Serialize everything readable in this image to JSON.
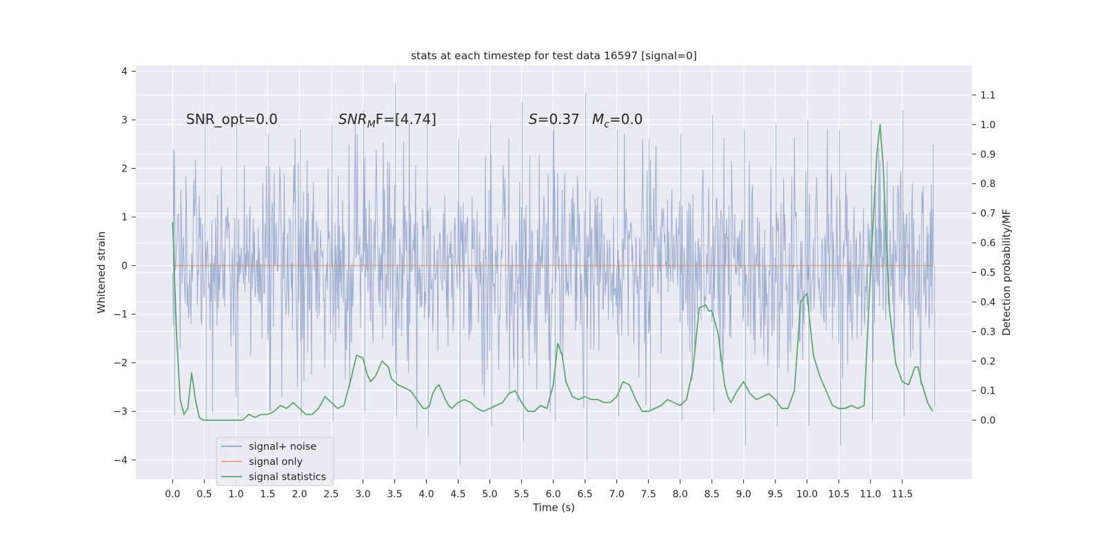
{
  "chart_data": {
    "type": "line",
    "title": "stats at each timestep for test data 16597 [signal=0]",
    "xlabel": "Time (s)",
    "ylabel_left": "Whitened strain",
    "ylabel_right": "Detection probability/MF",
    "xlim": [
      -0.58,
      12.6
    ],
    "ylim_left": [
      -4.4,
      4.12
    ],
    "ylim_right": [
      -0.2,
      1.2
    ],
    "x_ticks": [
      0.0,
      0.5,
      1.0,
      1.5,
      2.0,
      2.5,
      3.0,
      3.5,
      4.0,
      4.5,
      5.0,
      5.5,
      6.0,
      6.5,
      7.0,
      7.5,
      8.0,
      8.5,
      9.0,
      9.5,
      10.0,
      10.5,
      11.0,
      11.5
    ],
    "x_tick_labels": [
      "0.0",
      "0.5",
      "1.0",
      "1.5",
      "2.0",
      "2.5",
      "3.0",
      "3.5",
      "4.0",
      "4.5",
      "5.0",
      "5.5",
      "6.0",
      "6.5",
      "7.0",
      "7.5",
      "8.0",
      "8.5",
      "9.0",
      "9.5",
      "10.0",
      "10.5",
      "11.0",
      "11.5"
    ],
    "y_ticks_left": [
      4,
      3,
      2,
      1,
      0,
      -1,
      -2,
      -3,
      -4
    ],
    "y_tick_labels_left": [
      "4",
      "3",
      "2",
      "1",
      "0",
      "−1",
      "−2",
      "−3",
      "−4"
    ],
    "y_ticks_right": [
      1.1,
      1.0,
      0.9,
      0.8,
      0.7,
      0.6,
      0.5,
      0.4,
      0.3,
      0.2,
      0.1,
      0.0
    ],
    "y_tick_labels_right": [
      "1.1",
      "1.0",
      "0.9",
      "0.8",
      "0.7",
      "0.6",
      "0.5",
      "0.4",
      "0.3",
      "0.2",
      "0.1",
      "0.0"
    ],
    "grid": true,
    "legend": {
      "placement": "lower-left",
      "entries": [
        "signal+ noise",
        "signal only",
        "signal statistics"
      ]
    },
    "annotations": {
      "snr_opt": "SNR_opt=0.0",
      "snr_mf_main": "SNR",
      "snr_mf_sub": "M",
      "snr_mf_rest": "F=[4.74]",
      "s_var": "S",
      "s_value": "=0.37",
      "mc_main": "M",
      "mc_sub": "c",
      "mc_value": "=0.0"
    },
    "colors": {
      "background": "#eaeaf2",
      "grid": "#ffffff",
      "noise": "#4c72b0",
      "signal_only": "#dd8452",
      "statistics": "#55a868"
    },
    "series": [
      {
        "name": "signal+ noise",
        "axis": "left",
        "x_start": 0.0,
        "x_end": 11.98,
        "sample_step": 0.01,
        "envelope_x": [
          0.0,
          0.5,
          1.0,
          1.5,
          2.0,
          2.5,
          3.0,
          3.5,
          4.0,
          4.5,
          5.0,
          5.5,
          6.0,
          6.5,
          7.0,
          7.5,
          8.0,
          8.5,
          9.0,
          9.5,
          10.0,
          10.5,
          11.0,
          11.5,
          11.98
        ],
        "upper_peak": [
          2.4,
          3.1,
          2.9,
          2.7,
          2.8,
          2.9,
          3.2,
          3.75,
          2.9,
          2.6,
          2.9,
          3.35,
          2.9,
          3.55,
          2.8,
          2.6,
          2.7,
          3.1,
          2.8,
          2.9,
          3.0,
          2.8,
          3.0,
          3.2,
          2.5
        ],
        "lower_peak": [
          -3.1,
          -3.2,
          -3.1,
          -3.0,
          -3.1,
          -3.2,
          -3.0,
          -3.1,
          -3.5,
          -4.1,
          -3.3,
          -3.6,
          -3.2,
          -4.0,
          -3.1,
          -3.0,
          -3.2,
          -3.0,
          -3.7,
          -3.3,
          -3.3,
          -3.7,
          -3.2,
          -3.1,
          -2.9
        ],
        "typical_amplitude": 1.3
      },
      {
        "name": "signal only",
        "axis": "left",
        "x": [
          0.0,
          11.98
        ],
        "y": [
          0.0,
          0.0
        ]
      },
      {
        "name": "signal statistics",
        "axis": "right",
        "x": [
          0.0,
          0.06,
          0.12,
          0.18,
          0.24,
          0.3,
          0.36,
          0.42,
          0.48,
          0.6,
          0.8,
          1.0,
          1.1,
          1.2,
          1.3,
          1.4,
          1.5,
          1.6,
          1.7,
          1.8,
          1.9,
          2.0,
          2.1,
          2.2,
          2.3,
          2.4,
          2.5,
          2.6,
          2.7,
          2.8,
          2.9,
          3.0,
          3.06,
          3.12,
          3.2,
          3.3,
          3.4,
          3.45,
          3.55,
          3.65,
          3.75,
          3.85,
          3.95,
          4.0,
          4.05,
          4.1,
          4.15,
          4.2,
          4.3,
          4.35,
          4.4,
          4.5,
          4.6,
          4.7,
          4.8,
          4.9,
          5.0,
          5.1,
          5.2,
          5.3,
          5.4,
          5.5,
          5.6,
          5.7,
          5.8,
          5.9,
          6.0,
          6.07,
          6.14,
          6.2,
          6.3,
          6.4,
          6.5,
          6.6,
          6.7,
          6.8,
          6.9,
          7.0,
          7.1,
          7.2,
          7.3,
          7.4,
          7.5,
          7.6,
          7.7,
          7.8,
          7.9,
          8.0,
          8.1,
          8.2,
          8.3,
          8.4,
          8.45,
          8.5,
          8.6,
          8.7,
          8.75,
          8.8,
          8.9,
          9.0,
          9.1,
          9.2,
          9.3,
          9.4,
          9.5,
          9.6,
          9.7,
          9.8,
          9.9,
          10.0,
          10.05,
          10.1,
          10.2,
          10.3,
          10.4,
          10.5,
          10.6,
          10.7,
          10.8,
          10.9,
          11.0,
          11.1,
          11.15,
          11.2,
          11.25,
          11.3,
          11.4,
          11.5,
          11.6,
          11.7,
          11.75,
          11.8,
          11.9,
          11.98
        ],
        "y": [
          0.67,
          0.3,
          0.07,
          0.02,
          0.04,
          0.16,
          0.07,
          0.01,
          0.0,
          0.0,
          0.0,
          0.0,
          0.0,
          0.02,
          0.01,
          0.02,
          0.02,
          0.03,
          0.05,
          0.04,
          0.06,
          0.04,
          0.02,
          0.02,
          0.04,
          0.08,
          0.06,
          0.04,
          0.05,
          0.13,
          0.22,
          0.21,
          0.16,
          0.13,
          0.15,
          0.2,
          0.18,
          0.14,
          0.12,
          0.11,
          0.1,
          0.07,
          0.04,
          0.04,
          0.05,
          0.09,
          0.11,
          0.12,
          0.07,
          0.05,
          0.04,
          0.06,
          0.07,
          0.06,
          0.04,
          0.03,
          0.04,
          0.05,
          0.06,
          0.09,
          0.1,
          0.06,
          0.03,
          0.03,
          0.05,
          0.04,
          0.12,
          0.26,
          0.22,
          0.13,
          0.08,
          0.07,
          0.08,
          0.07,
          0.07,
          0.06,
          0.06,
          0.08,
          0.13,
          0.12,
          0.07,
          0.03,
          0.03,
          0.04,
          0.05,
          0.07,
          0.06,
          0.05,
          0.07,
          0.17,
          0.38,
          0.39,
          0.37,
          0.37,
          0.29,
          0.12,
          0.08,
          0.06,
          0.1,
          0.13,
          0.09,
          0.07,
          0.08,
          0.09,
          0.07,
          0.04,
          0.04,
          0.1,
          0.4,
          0.43,
          0.32,
          0.22,
          0.15,
          0.1,
          0.05,
          0.04,
          0.04,
          0.05,
          0.04,
          0.05,
          0.5,
          0.9,
          1.0,
          0.86,
          0.6,
          0.37,
          0.19,
          0.13,
          0.12,
          0.18,
          0.18,
          0.13,
          0.06,
          0.03
        ]
      }
    ]
  }
}
